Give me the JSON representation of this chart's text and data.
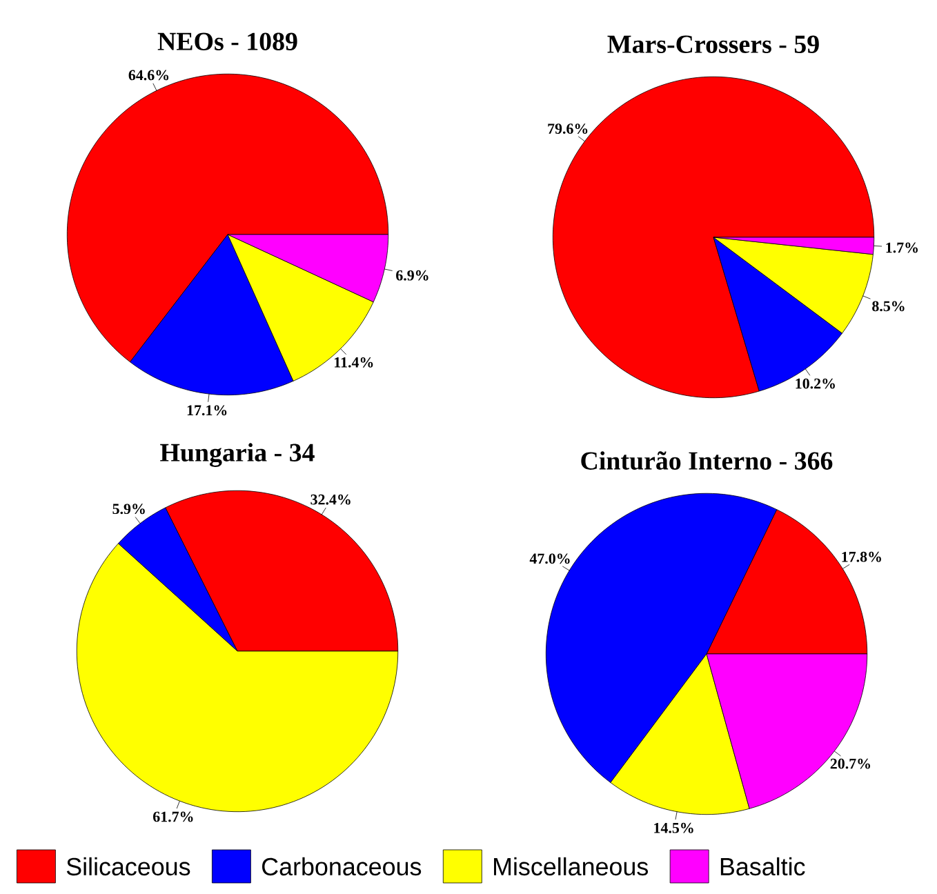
{
  "chart_data": [
    {
      "type": "pie",
      "title": "NEOs - 1089",
      "categories": [
        "Silicaceous",
        "Carbonaceous",
        "Miscellaneous",
        "Basaltic"
      ],
      "values": [
        64.6,
        17.1,
        11.4,
        6.9
      ],
      "colors": [
        "#ff0000",
        "#0000ff",
        "#ffff00",
        "#ff00ff"
      ],
      "value_labels": [
        "64.6%",
        "17.1%",
        "11.4%",
        "6.9%"
      ],
      "legend": "bottom"
    },
    {
      "type": "pie",
      "title": "Mars-Crossers - 59",
      "categories": [
        null,
        null,
        null,
        null
      ],
      "values": [
        79.6,
        10.2,
        8.5,
        1.7
      ],
      "colors": [
        "#ff0000",
        "#0000ff",
        "#ffff00",
        "#ff00ff"
      ],
      "value_labels": [
        "79.6%",
        "10.2%",
        "8.5%",
        "1.7%"
      ]
    },
    {
      "type": "pie",
      "title": "Hungaria - 34",
      "categories": [
        null,
        null,
        null
      ],
      "values": [
        32.4,
        5.9,
        61.7
      ],
      "colors": [
        "#ff0000",
        "#0000ff",
        "#ffff00"
      ],
      "value_labels": [
        "32.4%",
        "5.9%",
        "61.7%"
      ]
    },
    {
      "type": "pie",
      "title": "Cinturão Interno - 366",
      "categories": [
        null,
        null,
        null,
        null
      ],
      "values": [
        17.8,
        47.0,
        14.5,
        20.7
      ],
      "colors": [
        "#ff0000",
        "#0000ff",
        "#ffff00",
        "#ff00ff"
      ],
      "value_labels": [
        "17.8%",
        "47.0%",
        "14.5%",
        "20.7%"
      ]
    }
  ]
}
